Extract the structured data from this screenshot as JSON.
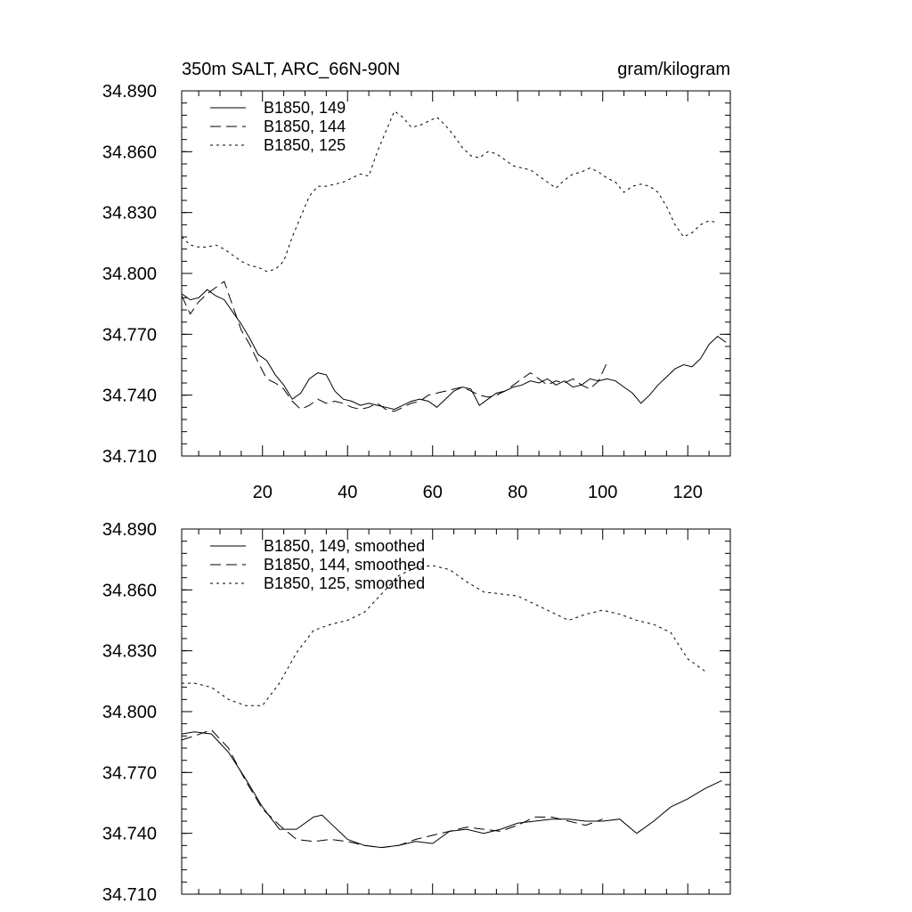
{
  "chart_data": [
    {
      "type": "line",
      "title": "350m SALT, ARC_66N-90N",
      "units": "gram/kilogram",
      "xlabel": "",
      "ylabel": "",
      "xlim": [
        1,
        130
      ],
      "ylim": [
        34.71,
        34.89
      ],
      "yticks": [
        "34.890",
        "34.860",
        "34.830",
        "34.800",
        "34.770",
        "34.740",
        "34.710"
      ],
      "xticks": [
        "20",
        "40",
        "60",
        "80",
        "100",
        "120"
      ],
      "legend_position": "top-left",
      "series": [
        {
          "name": "B1850, 149",
          "dash": "solid",
          "x": [
            1,
            3,
            5,
            7,
            9,
            11,
            13,
            15,
            17,
            19,
            21,
            23,
            25,
            27,
            29,
            31,
            33,
            35,
            37,
            39,
            41,
            43,
            45,
            47,
            49,
            51,
            53,
            55,
            57,
            59,
            61,
            63,
            65,
            67,
            69,
            71,
            73,
            75,
            77,
            79,
            81,
            83,
            85,
            87,
            89,
            91,
            93,
            95,
            97,
            99,
            101,
            103,
            105,
            107,
            109,
            111,
            113,
            115,
            117,
            119,
            121,
            123,
            125,
            127,
            129
          ],
          "values": [
            34.79,
            34.787,
            34.788,
            34.792,
            34.789,
            34.787,
            34.781,
            34.775,
            34.768,
            34.76,
            34.757,
            34.75,
            34.745,
            34.738,
            34.741,
            34.748,
            34.751,
            34.75,
            34.742,
            34.738,
            34.737,
            34.735,
            34.736,
            34.735,
            34.734,
            34.733,
            34.735,
            34.737,
            34.738,
            34.737,
            34.734,
            34.738,
            34.742,
            34.744,
            34.743,
            34.735,
            34.738,
            34.741,
            34.742,
            34.744,
            34.745,
            34.747,
            34.746,
            34.748,
            34.745,
            34.747,
            34.744,
            34.745,
            34.748,
            34.747,
            34.748,
            34.747,
            34.744,
            34.741,
            34.736,
            34.74,
            34.745,
            34.749,
            34.753,
            34.755,
            34.754,
            34.758,
            34.765,
            34.769,
            34.766
          ]
        },
        {
          "name": "B1850, 144",
          "dash": "long-dash",
          "x": [
            1,
            3,
            5,
            7,
            9,
            11,
            13,
            15,
            17,
            19,
            21,
            23,
            25,
            27,
            29,
            31,
            33,
            35,
            37,
            39,
            41,
            43,
            45,
            47,
            49,
            51,
            53,
            55,
            57,
            59,
            61,
            63,
            65,
            67,
            69,
            71,
            73,
            75,
            77,
            79,
            81,
            83,
            85,
            87,
            89,
            91,
            93,
            95,
            97,
            99,
            101
          ],
          "values": [
            34.789,
            34.78,
            34.786,
            34.79,
            34.793,
            34.796,
            34.784,
            34.772,
            34.765,
            34.756,
            34.748,
            34.746,
            34.743,
            34.737,
            34.733,
            34.735,
            34.738,
            34.736,
            34.737,
            34.736,
            34.734,
            34.733,
            34.734,
            34.736,
            34.733,
            34.732,
            34.734,
            34.736,
            34.737,
            34.74,
            34.741,
            34.742,
            34.743,
            34.744,
            34.742,
            34.74,
            34.739,
            34.74,
            34.742,
            34.745,
            34.748,
            34.751,
            34.748,
            34.745,
            34.747,
            34.746,
            34.748,
            34.745,
            34.743,
            34.747,
            34.756
          ]
        },
        {
          "name": "B1850, 125",
          "dash": "short-dash",
          "x": [
            1,
            3,
            5,
            7,
            9,
            11,
            13,
            15,
            17,
            19,
            21,
            23,
            25,
            27,
            29,
            31,
            33,
            35,
            37,
            39,
            41,
            43,
            45,
            47,
            49,
            51,
            53,
            55,
            57,
            59,
            61,
            63,
            65,
            67,
            69,
            71,
            73,
            75,
            77,
            79,
            81,
            83,
            85,
            87,
            89,
            91,
            93,
            95,
            97,
            99,
            101,
            103,
            105,
            107,
            109,
            111,
            113,
            115,
            117,
            119,
            121,
            123,
            125,
            127
          ],
          "values": [
            34.818,
            34.814,
            34.813,
            34.813,
            34.814,
            34.812,
            34.809,
            34.806,
            34.804,
            34.803,
            34.801,
            34.802,
            34.806,
            34.818,
            34.828,
            34.838,
            34.843,
            34.843,
            34.844,
            34.845,
            34.847,
            34.849,
            34.848,
            34.86,
            34.87,
            34.88,
            34.877,
            34.872,
            34.873,
            34.875,
            34.877,
            34.873,
            34.868,
            34.862,
            34.858,
            34.857,
            34.86,
            34.859,
            34.856,
            34.853,
            34.852,
            34.851,
            34.848,
            34.845,
            34.842,
            34.846,
            34.849,
            34.85,
            34.852,
            34.85,
            34.847,
            34.845,
            34.84,
            34.843,
            34.844,
            34.843,
            34.84,
            34.833,
            34.824,
            34.818,
            34.82,
            34.824,
            34.826,
            34.825
          ]
        }
      ]
    },
    {
      "type": "line",
      "title": "",
      "xlabel": "",
      "ylabel": "",
      "xlim": [
        1,
        130
      ],
      "ylim": [
        34.71,
        34.89
      ],
      "yticks": [
        "34.890",
        "34.860",
        "34.830",
        "34.800",
        "34.770",
        "34.740",
        "34.710"
      ],
      "legend_position": "top-left",
      "series": [
        {
          "name": "B1850, 149, smoothed",
          "dash": "solid",
          "x": [
            1,
            4,
            8,
            12,
            16,
            20,
            24,
            28,
            32,
            34,
            36,
            40,
            44,
            48,
            52,
            56,
            60,
            64,
            68,
            72,
            76,
            80,
            84,
            88,
            92,
            96,
            100,
            104,
            108,
            112,
            116,
            120,
            124,
            128
          ],
          "values": [
            34.789,
            34.79,
            34.789,
            34.78,
            34.767,
            34.753,
            34.742,
            34.742,
            34.748,
            34.749,
            34.745,
            34.737,
            34.734,
            34.733,
            34.734,
            34.736,
            34.735,
            34.741,
            34.742,
            34.74,
            34.742,
            34.745,
            34.746,
            34.747,
            34.747,
            34.746,
            34.746,
            34.747,
            34.74,
            34.746,
            34.753,
            34.757,
            34.762,
            34.766
          ]
        },
        {
          "name": "B1850, 144, smoothed",
          "dash": "long-dash",
          "x": [
            1,
            4,
            8,
            12,
            16,
            20,
            24,
            28,
            32,
            36,
            40,
            44,
            48,
            52,
            56,
            60,
            64,
            68,
            72,
            76,
            80,
            84,
            88,
            92,
            96,
            100
          ],
          "values": [
            34.786,
            34.788,
            34.791,
            34.782,
            34.766,
            34.752,
            34.744,
            34.737,
            34.736,
            34.737,
            34.736,
            34.734,
            34.733,
            34.734,
            34.737,
            34.739,
            34.741,
            34.743,
            34.742,
            34.741,
            34.744,
            34.748,
            34.748,
            34.746,
            34.744,
            34.747
          ]
        },
        {
          "name": "B1850, 125, smoothed",
          "dash": "short-dash",
          "x": [
            1,
            4,
            8,
            12,
            16,
            20,
            24,
            28,
            32,
            36,
            40,
            44,
            48,
            52,
            56,
            60,
            64,
            68,
            72,
            76,
            80,
            84,
            88,
            92,
            96,
            100,
            104,
            108,
            112,
            116,
            120,
            124
          ],
          "values": [
            34.814,
            34.814,
            34.812,
            34.806,
            34.803,
            34.803,
            34.814,
            34.829,
            34.84,
            34.843,
            34.845,
            34.849,
            34.858,
            34.867,
            34.871,
            34.872,
            34.87,
            34.864,
            34.859,
            34.858,
            34.857,
            34.853,
            34.849,
            34.845,
            34.848,
            34.85,
            34.848,
            34.845,
            34.843,
            34.839,
            34.826,
            34.82
          ]
        }
      ]
    }
  ]
}
